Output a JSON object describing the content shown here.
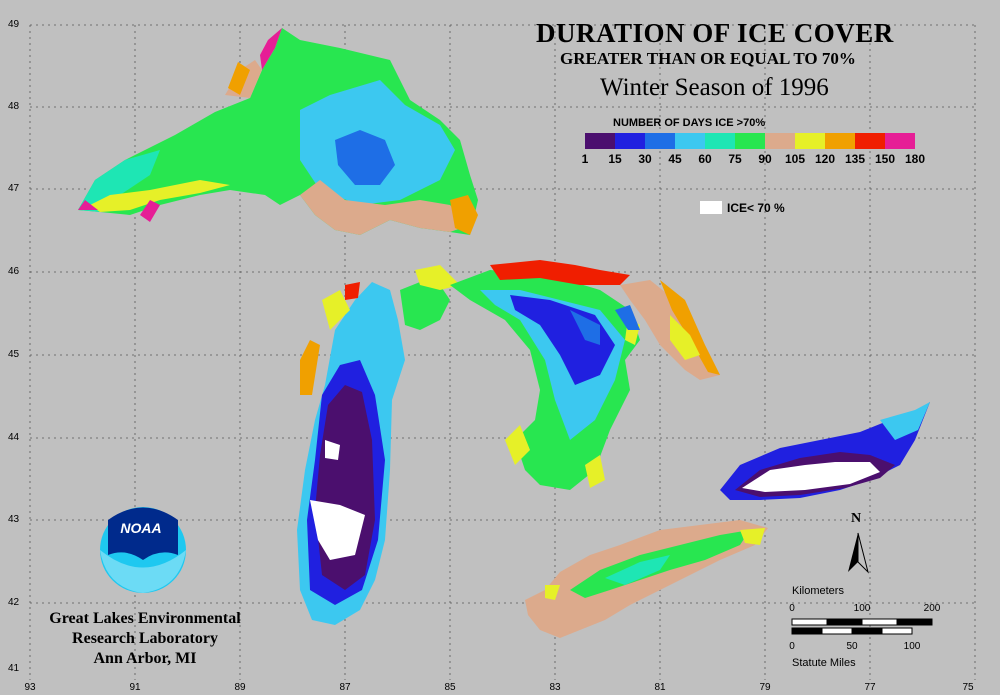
{
  "title": {
    "line1": "DURATION OF ICE COVER",
    "line2": "GREATER THAN OR EQUAL TO 70%",
    "line3": "Winter Season of 1996"
  },
  "legend": {
    "heading": "NUMBER OF DAYS ICE >70%",
    "breaks": [
      "1",
      "15",
      "30",
      "45",
      "60",
      "75",
      "90",
      "105",
      "120",
      "135",
      "150",
      "180"
    ],
    "colors": [
      "#4b0f6e",
      "#2020e0",
      "#1e6ee6",
      "#3cc8f0",
      "#1ee6b4",
      "#28e650",
      "#dcaa8c",
      "#e6f028",
      "#f0a000",
      "#f01e00",
      "#e61e96"
    ],
    "ice_label": "ICE< 70 %"
  },
  "credit": {
    "line1": "Great Lakes Environmental",
    "line2": "Research Laboratory",
    "line3": "Ann Arbor, MI"
  },
  "logo": {
    "text": "NOAA"
  },
  "north_arrow": {
    "label": "N"
  },
  "scale_bar": {
    "km_label": "Kilometers",
    "km_ticks": [
      "0",
      "100",
      "200"
    ],
    "mi_label": "Statute Miles",
    "mi_ticks": [
      "0",
      "50",
      "100"
    ]
  },
  "grid": {
    "latitudes": [
      "49",
      "48",
      "47",
      "46",
      "45",
      "44",
      "43",
      "42",
      "41"
    ],
    "longitudes": [
      "93",
      "91",
      "89",
      "87",
      "85",
      "83",
      "81",
      "79",
      "77",
      "75"
    ]
  }
}
